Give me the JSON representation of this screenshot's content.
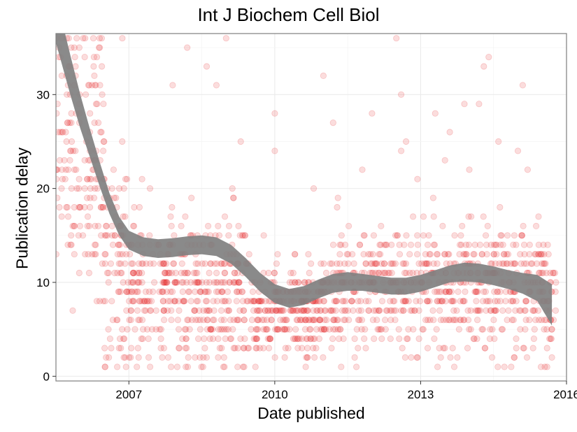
{
  "chart_data": {
    "type": "scatter",
    "title": "Int J Biochem Cell Biol",
    "xlabel": "Date published",
    "ylabel": "Publication delay",
    "xlim": [
      2005.5,
      2016.0
    ],
    "ylim": [
      -0.5,
      36.5
    ],
    "x_ticks": [
      2007,
      2010,
      2013,
      2016
    ],
    "x_tick_labels": [
      "2007",
      "2010",
      "2013",
      "2016"
    ],
    "y_ticks": [
      0,
      10,
      20,
      30
    ],
    "y_tick_labels": [
      "0",
      "10",
      "20",
      "30"
    ],
    "grid": true,
    "point_color": "#e41a1c",
    "point_alpha": 0.15,
    "smooth_color": "#808080",
    "notes": "",
    "density_profile": [
      {
        "x_range": [
          2005.5,
          2006.5
        ],
        "y_center": 24,
        "y_spread": 7,
        "count": 170
      },
      {
        "x_range": [
          2006.5,
          2007.0
        ],
        "y_center": 12,
        "y_spread": 7,
        "count": 90
      },
      {
        "x_range": [
          2007.0,
          2009.5
        ],
        "y_center": 9,
        "y_spread": 4,
        "count": 420
      },
      {
        "x_range": [
          2009.5,
          2011.0
        ],
        "y_center": 7,
        "y_spread": 2.5,
        "count": 260
      },
      {
        "x_range": [
          2011.0,
          2015.8
        ],
        "y_center": 9,
        "y_spread": 3.5,
        "count": 700
      }
    ],
    "outliers": [
      {
        "x": 2009.0,
        "y": 36
      },
      {
        "x": 2012.5,
        "y": 36
      },
      {
        "x": 2006.1,
        "y": 36
      },
      {
        "x": 2006.4,
        "y": 35
      },
      {
        "x": 2008.2,
        "y": 35
      },
      {
        "x": 2014.4,
        "y": 34
      },
      {
        "x": 2008.6,
        "y": 33
      },
      {
        "x": 2014.3,
        "y": 33
      },
      {
        "x": 2011.0,
        "y": 32
      },
      {
        "x": 2008.8,
        "y": 31
      },
      {
        "x": 2015.1,
        "y": 31
      },
      {
        "x": 2012.6,
        "y": 30
      },
      {
        "x": 2007.9,
        "y": 31
      },
      {
        "x": 2014.2,
        "y": 29
      },
      {
        "x": 2013.9,
        "y": 29
      },
      {
        "x": 2010.0,
        "y": 28
      },
      {
        "x": 2012.0,
        "y": 28
      },
      {
        "x": 2013.3,
        "y": 28
      },
      {
        "x": 2011.2,
        "y": 27
      },
      {
        "x": 2013.6,
        "y": 26
      },
      {
        "x": 2009.3,
        "y": 25
      },
      {
        "x": 2012.7,
        "y": 25
      },
      {
        "x": 2014.6,
        "y": 25
      },
      {
        "x": 2012.6,
        "y": 24
      },
      {
        "x": 2015.0,
        "y": 24
      },
      {
        "x": 2010.0,
        "y": 24
      },
      {
        "x": 2013.5,
        "y": 23
      },
      {
        "x": 2015.2,
        "y": 22
      },
      {
        "x": 2011.8,
        "y": 22
      },
      {
        "x": 2014.0,
        "y": 22
      },
      {
        "x": 2010.8,
        "y": 20
      },
      {
        "x": 2011.3,
        "y": 19
      },
      {
        "x": 2015.6,
        "y": 1
      },
      {
        "x": 2015.7,
        "y": 2
      },
      {
        "x": 2015.6,
        "y": 3
      },
      {
        "x": 2015.65,
        "y": 4
      },
      {
        "x": 2015.7,
        "y": 5
      },
      {
        "x": 2015.55,
        "y": 6
      }
    ],
    "smooth": {
      "x": [
        2005.5,
        2005.8,
        2006.0,
        2006.2,
        2006.4,
        2006.6,
        2006.8,
        2007.0,
        2007.3,
        2007.6,
        2007.9,
        2008.2,
        2008.5,
        2008.8,
        2009.1,
        2009.4,
        2009.7,
        2010.0,
        2010.3,
        2010.6,
        2010.9,
        2011.2,
        2011.5,
        2011.8,
        2012.1,
        2012.4,
        2012.7,
        2013.0,
        2013.3,
        2013.6,
        2013.9,
        2014.2,
        2014.5,
        2014.8,
        2015.1,
        2015.4,
        2015.7
      ],
      "y": [
        38.0,
        32.0,
        28.2,
        24.8,
        21.5,
        18.4,
        16.0,
        14.5,
        13.8,
        13.6,
        13.7,
        13.9,
        14.0,
        13.8,
        13.0,
        11.6,
        10.0,
        8.8,
        8.3,
        8.6,
        9.3,
        9.9,
        10.1,
        10.0,
        9.8,
        9.6,
        9.6,
        9.9,
        10.4,
        10.9,
        11.1,
        11.0,
        10.7,
        10.3,
        9.9,
        9.4,
        7.6
      ],
      "band_halfwidth": [
        2.5,
        2.1,
        1.8,
        1.5,
        1.3,
        1.1,
        1.0,
        1.0,
        1.0,
        1.0,
        1.0,
        1.0,
        1.0,
        1.0,
        1.0,
        1.0,
        1.0,
        1.0,
        1.0,
        1.0,
        1.0,
        1.0,
        1.0,
        0.9,
        0.9,
        0.9,
        0.9,
        0.9,
        0.9,
        0.9,
        1.0,
        1.0,
        1.0,
        1.0,
        1.1,
        1.4,
        2.2
      ]
    }
  }
}
